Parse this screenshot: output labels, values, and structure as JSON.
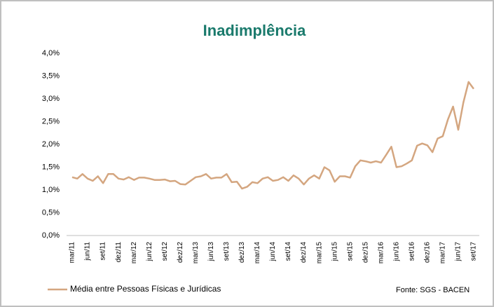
{
  "chart_data": {
    "type": "line",
    "title": "Inadimplência",
    "source": "Fonte: SGS - BACEN",
    "categories": [
      "mar/11",
      null,
      null,
      "jun/11",
      null,
      null,
      "set/11",
      null,
      null,
      "dez/11",
      null,
      null,
      "mar/12",
      null,
      null,
      "jun/12",
      null,
      null,
      "set/12",
      null,
      null,
      "dez/12",
      null,
      null,
      "mar/13",
      null,
      null,
      "jun/13",
      null,
      null,
      "set/13",
      null,
      null,
      "dez/13",
      null,
      null,
      "mar/14",
      null,
      null,
      "jun/14",
      null,
      null,
      "set/14",
      null,
      null,
      "dez/14",
      null,
      null,
      "mar/15",
      null,
      null,
      "jun/15",
      null,
      null,
      "set/15",
      null,
      null,
      "dez/15",
      null,
      null,
      "mar/16",
      null,
      null,
      "jun/16",
      null,
      null,
      "set/16",
      null,
      null,
      "dez/16",
      null,
      null,
      "mar/17",
      null,
      null,
      "jun/17",
      null,
      null,
      "set/17"
    ],
    "series": [
      {
        "name": "Média entre Pessoas Físicas e Jurídicas",
        "color": "#d4a680",
        "values": [
          1.28,
          1.25,
          1.35,
          1.25,
          1.2,
          1.3,
          1.15,
          1.35,
          1.35,
          1.25,
          1.23,
          1.28,
          1.22,
          1.27,
          1.27,
          1.25,
          1.22,
          1.22,
          1.23,
          1.19,
          1.2,
          1.13,
          1.12,
          1.2,
          1.28,
          1.3,
          1.35,
          1.25,
          1.27,
          1.27,
          1.35,
          1.17,
          1.18,
          1.03,
          1.07,
          1.17,
          1.15,
          1.25,
          1.28,
          1.2,
          1.22,
          1.28,
          1.2,
          1.32,
          1.25,
          1.12,
          1.25,
          1.32,
          1.25,
          1.5,
          1.43,
          1.18,
          1.3,
          1.3,
          1.27,
          1.52,
          1.65,
          1.63,
          1.6,
          1.63,
          1.6,
          1.77,
          1.95,
          1.5,
          1.52,
          1.58,
          1.65,
          1.97,
          2.02,
          1.98,
          1.83,
          2.13,
          2.18,
          2.55,
          2.83,
          2.32,
          2.92,
          3.37,
          3.22
        ]
      }
    ],
    "ylim": [
      0,
      4
    ],
    "yticks": [
      {
        "value": 0,
        "label": "0,0%"
      },
      {
        "value": 0.5,
        "label": "0,5%"
      },
      {
        "value": 1,
        "label": "1,0%"
      },
      {
        "value": 1.5,
        "label": "1,5%"
      },
      {
        "value": 2,
        "label": "2,0%"
      },
      {
        "value": 2.5,
        "label": "2,5%"
      },
      {
        "value": 3,
        "label": "3,0%"
      },
      {
        "value": 3.5,
        "label": "3,5%"
      },
      {
        "value": 4,
        "label": "4,0%"
      }
    ],
    "grid": false
  }
}
